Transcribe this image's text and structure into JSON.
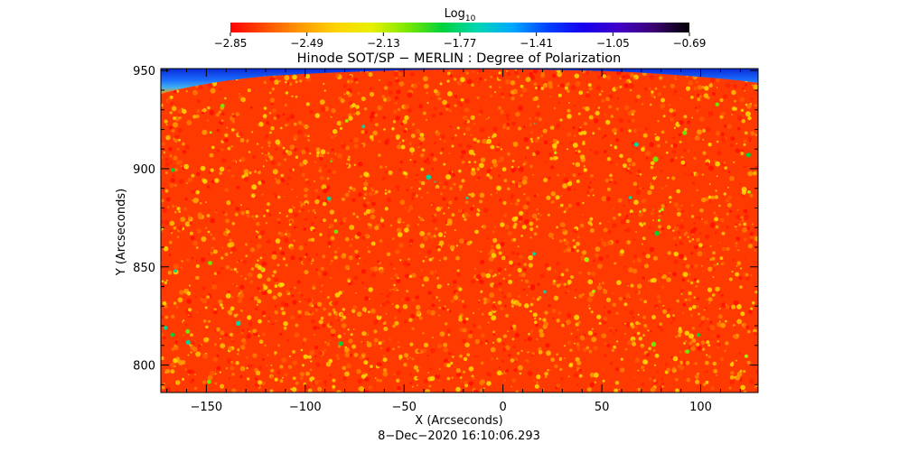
{
  "chart_data": {
    "type": "heatmap",
    "title": "Hinode SOT/SP − MERLIN : Degree of Polarization",
    "xlabel": "X (Arcseconds)",
    "ylabel": "Y (Arcseconds)",
    "timestamp": "8−Dec−2020 16:10:06.293",
    "xlim": [
      -173,
      129
    ],
    "ylim": [
      786,
      951
    ],
    "x_ticks": [
      -150,
      -100,
      -50,
      0,
      50,
      100
    ],
    "x_tick_labels": [
      "−150",
      "−100",
      "−50",
      "0",
      "50",
      "100"
    ],
    "y_ticks": [
      800,
      850,
      900,
      950
    ],
    "y_tick_labels": [
      "800",
      "850",
      "900",
      "950"
    ],
    "grid": false,
    "colorbar": {
      "label_base": "Log",
      "label_sub": "10",
      "range": [
        -2.85,
        -0.69
      ],
      "ticks": [
        -2.85,
        -2.49,
        -2.13,
        -1.77,
        -1.41,
        -1.05,
        -0.69
      ],
      "tick_labels": [
        "−2.85",
        "−2.49",
        "−2.13",
        "−1.77",
        "−1.41",
        "−1.05",
        "−0.69"
      ],
      "colors": [
        "#ff0000",
        "#ff5000",
        "#ff9a00",
        "#ffd400",
        "#e8f000",
        "#7ce800",
        "#00d23c",
        "#00d6b4",
        "#00a8ff",
        "#0040ff",
        "#1800ee",
        "#4000c8",
        "#3c0070",
        "#000000"
      ]
    },
    "field_summary": {
      "dominant_value": -2.7,
      "limb_region_value": -1.3,
      "limb_region": "top edge"
    }
  }
}
